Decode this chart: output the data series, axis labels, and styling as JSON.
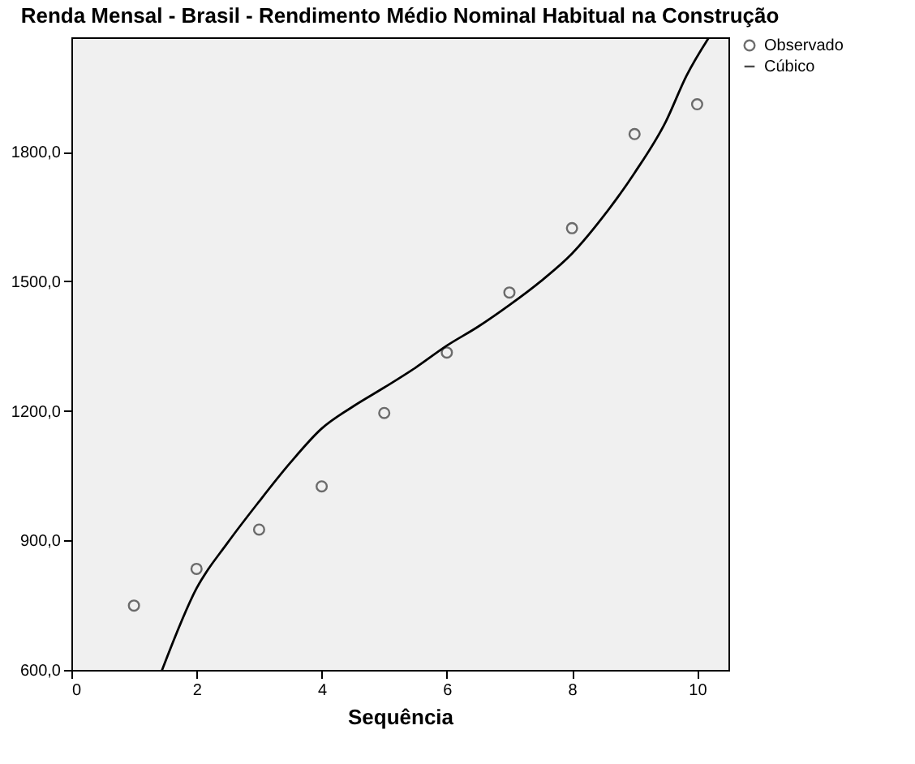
{
  "chart_data": {
    "type": "scatter",
    "title": "Renda Mensal - Brasil - Rendimento Médio Nominal Habitual na Construção",
    "xlabel": "Sequência",
    "xlim": [
      0,
      10.5
    ],
    "ylim": [
      600,
      2065
    ],
    "xticks": [
      0,
      2,
      4,
      6,
      8,
      10
    ],
    "yticks": [
      {
        "value": 600,
        "label": "600,0"
      },
      {
        "value": 900,
        "label": "900,0"
      },
      {
        "value": 1200,
        "label": "1200,0"
      },
      {
        "value": 1500,
        "label": "1500,0"
      },
      {
        "value": 1800,
        "label": "1800,0"
      }
    ],
    "grid": false,
    "legend": "top right",
    "series": [
      {
        "name": "Observado",
        "marker": "circle",
        "color": "#333333",
        "x": [
          1,
          2,
          3,
          4,
          5,
          6,
          7,
          8,
          9,
          10
        ],
        "values": [
          749,
          834,
          925,
          1025,
          1195,
          1335,
          1474,
          1623,
          1841,
          1910
        ]
      },
      {
        "name": "Cúbico",
        "type": "line",
        "marker": "none",
        "line_style": "solid",
        "color": "#000000",
        "x": [
          1.45,
          2,
          2.5,
          3,
          3.5,
          4,
          4.5,
          5,
          5.5,
          6,
          6.5,
          7,
          7.5,
          8,
          8.5,
          9,
          9.5,
          9.83,
          10.19
        ],
        "values": [
          600,
          789,
          895,
          990,
          1080,
          1159,
          1210,
          1254,
          1300,
          1351,
          1395,
          1445,
          1500,
          1564,
          1650,
          1751,
          1870,
          1976,
          2065
        ]
      }
    ]
  }
}
